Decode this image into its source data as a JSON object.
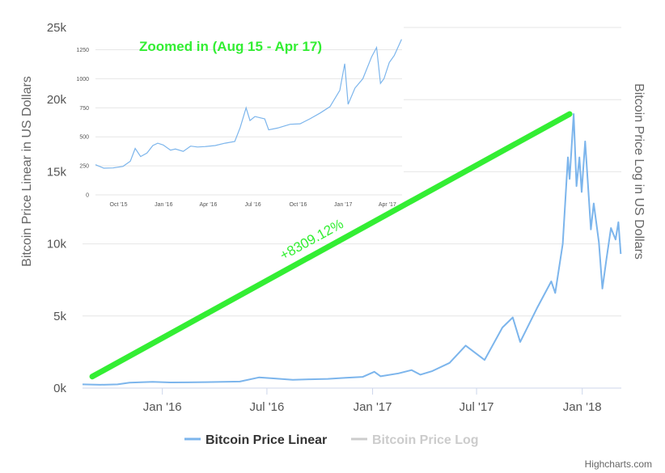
{
  "chart_data": {
    "type": "line",
    "title": "",
    "y_left_label": "Bitcoin Price Linear in US Dollars",
    "y_right_label": "Bitcoin Price Log in US Dollars",
    "x_ticks": [
      "Jan '16",
      "Jul '16",
      "Jan '17",
      "Jul '17",
      "Jan '18"
    ],
    "y_ticks": [
      "0k",
      "5k",
      "10k",
      "15k",
      "20k",
      "25k"
    ],
    "ylim": [
      0,
      25000
    ],
    "grid": true,
    "legend": {
      "placement": "bottom-center",
      "items": [
        "Bitcoin Price Linear",
        "Bitcoin Price Log"
      ]
    },
    "series": [
      {
        "name": "Bitcoin Price Linear",
        "color": "#7cb5ec",
        "points": [
          [
            "2015-08-15",
            260
          ],
          [
            "2015-09-15",
            230
          ],
          [
            "2015-10-15",
            260
          ],
          [
            "2015-11-05",
            380
          ],
          [
            "2015-12-15",
            440
          ],
          [
            "2016-01-15",
            390
          ],
          [
            "2016-02-15",
            400
          ],
          [
            "2016-03-15",
            415
          ],
          [
            "2016-04-15",
            430
          ],
          [
            "2016-05-15",
            455
          ],
          [
            "2016-06-17",
            740
          ],
          [
            "2016-07-15",
            665
          ],
          [
            "2016-08-15",
            575
          ],
          [
            "2016-09-15",
            610
          ],
          [
            "2016-10-15",
            640
          ],
          [
            "2016-11-15",
            710
          ],
          [
            "2016-12-15",
            780
          ],
          [
            "2017-01-04",
            1130
          ],
          [
            "2017-01-15",
            820
          ],
          [
            "2017-02-15",
            1020
          ],
          [
            "2017-03-10",
            1250
          ],
          [
            "2017-03-25",
            930
          ],
          [
            "2017-04-15",
            1180
          ],
          [
            "2017-05-15",
            1750
          ],
          [
            "2017-06-12",
            2950
          ],
          [
            "2017-07-15",
            1950
          ],
          [
            "2017-08-15",
            4200
          ],
          [
            "2017-09-02",
            4900
          ],
          [
            "2017-09-15",
            3200
          ],
          [
            "2017-10-15",
            5600
          ],
          [
            "2017-11-08",
            7400
          ],
          [
            "2017-11-15",
            6600
          ],
          [
            "2017-11-28",
            10000
          ],
          [
            "2017-12-07",
            16000
          ],
          [
            "2017-12-10",
            14500
          ],
          [
            "2017-12-17",
            19000
          ],
          [
            "2017-12-22",
            14000
          ],
          [
            "2017-12-27",
            16000
          ],
          [
            "2017-12-31",
            13600
          ],
          [
            "2018-01-06",
            17100
          ],
          [
            "2018-01-16",
            11000
          ],
          [
            "2018-01-21",
            12800
          ],
          [
            "2018-01-30",
            10100
          ],
          [
            "2018-02-05",
            6900
          ],
          [
            "2018-02-12",
            8900
          ],
          [
            "2018-02-20",
            11100
          ],
          [
            "2018-02-28",
            10300
          ],
          [
            "2018-03-05",
            11500
          ],
          [
            "2018-03-09",
            9300
          ]
        ]
      },
      {
        "name": "Bitcoin Price Log",
        "color": "#cccccc",
        "points": []
      }
    ],
    "annotation": {
      "text": "+8309.12%",
      "from": [
        "2015-09-01",
        800
      ],
      "to": [
        "2017-12-10",
        19000
      ],
      "color": "#33ee33"
    },
    "inset": {
      "title": "Zoomed in (Aug 15 - Apr 17)",
      "title_color": "#33ee33",
      "x_ticks": [
        "Oct '15",
        "Jan '16",
        "Apr '16",
        "Jul '16",
        "Oct '16",
        "Jan '17",
        "Apr '17"
      ],
      "y_ticks": [
        "0",
        "250",
        "500",
        "750",
        "1000",
        "1250"
      ],
      "ylim": [
        0,
        1400
      ],
      "points": [
        [
          "2015-08-15",
          260
        ],
        [
          "2015-09-01",
          230
        ],
        [
          "2015-09-20",
          232
        ],
        [
          "2015-10-10",
          245
        ],
        [
          "2015-10-25",
          290
        ],
        [
          "2015-11-04",
          400
        ],
        [
          "2015-11-15",
          330
        ],
        [
          "2015-11-28",
          360
        ],
        [
          "2015-12-10",
          425
        ],
        [
          "2015-12-20",
          445
        ],
        [
          "2015-12-31",
          430
        ],
        [
          "2016-01-15",
          385
        ],
        [
          "2016-01-25",
          395
        ],
        [
          "2016-02-10",
          375
        ],
        [
          "2016-02-25",
          420
        ],
        [
          "2016-03-10",
          412
        ],
        [
          "2016-03-25",
          416
        ],
        [
          "2016-04-15",
          425
        ],
        [
          "2016-05-05",
          445
        ],
        [
          "2016-05-25",
          460
        ],
        [
          "2016-06-05",
          580
        ],
        [
          "2016-06-17",
          750
        ],
        [
          "2016-06-25",
          640
        ],
        [
          "2016-07-05",
          675
        ],
        [
          "2016-07-25",
          655
        ],
        [
          "2016-08-02",
          560
        ],
        [
          "2016-08-20",
          575
        ],
        [
          "2016-09-15",
          608
        ],
        [
          "2016-10-05",
          612
        ],
        [
          "2016-10-25",
          655
        ],
        [
          "2016-11-15",
          705
        ],
        [
          "2016-12-05",
          760
        ],
        [
          "2016-12-25",
          900
        ],
        [
          "2017-01-04",
          1130
        ],
        [
          "2017-01-11",
          780
        ],
        [
          "2017-01-25",
          920
        ],
        [
          "2017-02-10",
          1000
        ],
        [
          "2017-02-28",
          1190
        ],
        [
          "2017-03-10",
          1270
        ],
        [
          "2017-03-18",
          960
        ],
        [
          "2017-03-25",
          1000
        ],
        [
          "2017-04-05",
          1140
        ],
        [
          "2017-04-15",
          1200
        ],
        [
          "2017-04-30",
          1340
        ]
      ]
    },
    "credit": "Highcharts.com"
  }
}
